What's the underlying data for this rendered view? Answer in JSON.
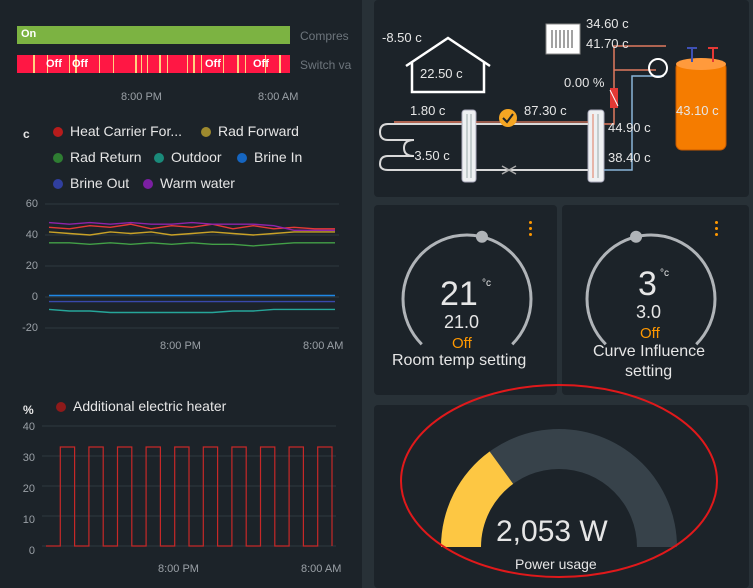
{
  "timeline": {
    "compressor": {
      "state": "On",
      "label": "Compres"
    },
    "switch_valve": {
      "states": [
        "Off",
        "Off",
        "Off",
        "Off"
      ],
      "label": "Switch va"
    },
    "x_ticks": [
      "8:00 PM",
      "8:00 AM"
    ]
  },
  "temp_chart": {
    "chart_data": {
      "type": "line",
      "ylabel": "c",
      "y_ticks": [
        "60",
        "40",
        "20",
        "0",
        "-20"
      ],
      "ylim": [
        -20,
        60
      ],
      "x_ticks": [
        "8:00 PM",
        "8:00 AM"
      ],
      "series": [
        {
          "name": "Heat Carrier For...",
          "color": "#e53935",
          "values": [
            45,
            44,
            46,
            45,
            47,
            44,
            46,
            45,
            47,
            44,
            46,
            44,
            45,
            44,
            44
          ]
        },
        {
          "name": "Rad Forward",
          "color": "#c9a227",
          "values": [
            42,
            41,
            40,
            42,
            41,
            42,
            40,
            41,
            42,
            41,
            40,
            41,
            42,
            42,
            42
          ]
        },
        {
          "name": "Rad Return",
          "color": "#43a047",
          "values": [
            35,
            35,
            34,
            35,
            34,
            35,
            34,
            35,
            34,
            34,
            33,
            34,
            35,
            35,
            35
          ]
        },
        {
          "name": "Outdoor",
          "color": "#26a69a",
          "values": [
            -8,
            -9,
            -9,
            -10,
            -10,
            -10,
            -10,
            -10,
            -10,
            -9,
            -9,
            -8,
            -8,
            -8,
            -8
          ]
        },
        {
          "name": "Brine In",
          "color": "#1e88e5",
          "values": [
            1,
            1,
            1,
            1,
            1,
            1,
            1,
            1,
            1,
            1,
            1,
            1,
            1,
            1,
            1
          ]
        },
        {
          "name": "Brine Out",
          "color": "#3949ab",
          "values": [
            -3,
            -3,
            -3,
            -3,
            -3,
            -3,
            -3,
            -3,
            -3,
            -3,
            -3,
            -3,
            -3,
            -3,
            -3
          ]
        },
        {
          "name": "Warm water",
          "color": "#8e24aa",
          "values": [
            48,
            47,
            48,
            47,
            48,
            47,
            47,
            48,
            47,
            47,
            47,
            46,
            43,
            43,
            43
          ]
        }
      ]
    }
  },
  "heater_chart": {
    "chart_data": {
      "type": "line",
      "ylabel": "%",
      "y_ticks": [
        "40",
        "30",
        "20",
        "10",
        "0"
      ],
      "ylim": [
        0,
        40
      ],
      "x_ticks": [
        "8:00 PM",
        "8:00 AM"
      ],
      "series": [
        {
          "name": "Additional electric heater",
          "color": "#c62828",
          "values": [
            0,
            33,
            0,
            33,
            0,
            33,
            0,
            33,
            0,
            33,
            0,
            33,
            0,
            33,
            0,
            33,
            0,
            33,
            0,
            33,
            0
          ]
        }
      ]
    }
  },
  "diagram": {
    "outdoor_temp": "-8.50 c",
    "indoor_temp": "22.50 c",
    "brine_in": "1.80 c",
    "brine_out": "-3.50 c",
    "heat_carrier": "87.30 c",
    "valve_percent": "0.00 %",
    "tank_top": "34.60 c",
    "tank_mid": "41.70 c",
    "rad_forward": "44.90 c",
    "rad_return": "38.40 c",
    "tank_temp": "43.10 c"
  },
  "room_temp": {
    "value": "21",
    "unit": "°c",
    "sub": "21.0",
    "status": "Off",
    "label": "Room temp setting",
    "fraction": 0.55
  },
  "curve": {
    "value": "3",
    "unit": "°c",
    "sub": "3.0",
    "status": "Off",
    "label_line1": "Curve Influence",
    "label_line2": "setting",
    "fraction": 0.45
  },
  "power": {
    "value": "2,053 W",
    "label": "Power usage",
    "fraction": 0.3
  },
  "colors": {
    "accent": "#ff9800",
    "gauge_fill": "#fdc743",
    "gauge_track": "#37424a",
    "annotation": "#e0191b"
  }
}
